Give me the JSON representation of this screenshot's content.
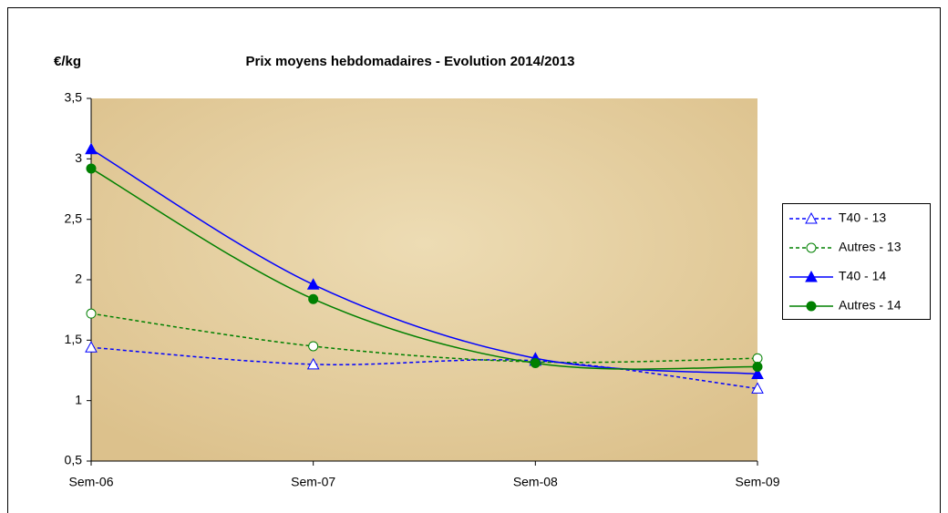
{
  "chart_data": {
    "type": "line",
    "title": "Prix moyens hebdomadaires - Evolution 2014/2013",
    "y_label": "€/kg",
    "categories": [
      "Sem-06",
      "Sem-07",
      "Sem-08",
      "Sem-09"
    ],
    "series": [
      {
        "name": "T40 - 13",
        "color": "#0000ff",
        "dash": true,
        "marker": "triangle",
        "filled": false,
        "values": [
          1.44,
          1.3,
          1.33,
          1.1
        ]
      },
      {
        "name": "Autres - 13",
        "color": "#008000",
        "dash": true,
        "marker": "circle",
        "filled": false,
        "values": [
          1.72,
          1.45,
          1.32,
          1.35
        ]
      },
      {
        "name": "T40 - 14",
        "color": "#0000ff",
        "dash": false,
        "marker": "triangle",
        "filled": true,
        "values": [
          3.08,
          1.96,
          1.35,
          1.22
        ]
      },
      {
        "name": "Autres - 14",
        "color": "#008000",
        "dash": false,
        "marker": "circle",
        "filled": true,
        "values": [
          2.92,
          1.84,
          1.31,
          1.28
        ]
      }
    ],
    "ylim": [
      0.5,
      3.5
    ],
    "yticks": [
      {
        "value": 0.5,
        "label": "0,5"
      },
      1,
      {
        "value": 1.5,
        "label": "1,5"
      },
      2,
      {
        "value": 2.5,
        "label": "2,5"
      },
      3,
      {
        "value": 3.5,
        "label": "3,5"
      }
    ],
    "smooth": true,
    "legend": "right"
  }
}
